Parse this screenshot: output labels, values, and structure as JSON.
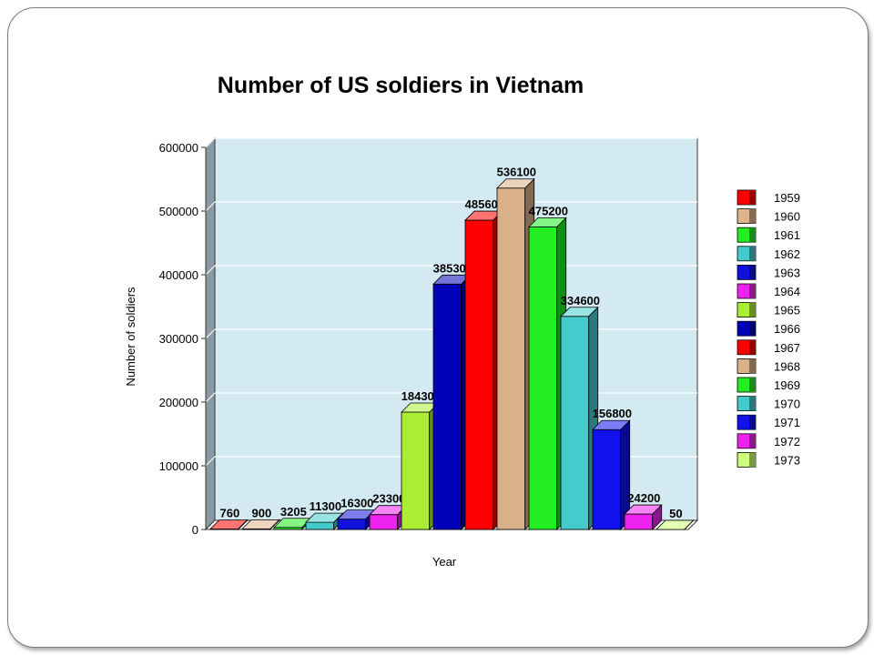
{
  "chart_data": {
    "type": "bar",
    "title": "Number of US soldiers in Vietnam",
    "xlabel": "Year",
    "ylabel": "Number of soldiers",
    "ylim": [
      0,
      600000
    ],
    "yticks": [
      "0",
      "100000",
      "200000",
      "300000",
      "400000",
      "500000",
      "600000"
    ],
    "grid": true,
    "legend_position": "right",
    "categories": [
      "1959",
      "1960",
      "1961",
      "1962",
      "1963",
      "1964",
      "1965",
      "1966",
      "1967",
      "1968",
      "1969",
      "1970",
      "1971",
      "1972",
      "1973"
    ],
    "values": [
      760,
      900,
      3205,
      11300,
      16300,
      23300,
      184300,
      385300,
      485600,
      536100,
      475200,
      334600,
      156800,
      24200,
      50
    ],
    "data_labels": [
      "760",
      "900",
      "3205",
      "11300",
      "16300",
      "23300",
      "184300",
      "385300",
      "485600",
      "536100",
      "475200",
      "334600",
      "156800",
      "24200",
      "50"
    ],
    "colors": [
      "#ff0000",
      "#e0b48a",
      "#22ee22",
      "#44cccc",
      "#1111dd",
      "#ee22ee",
      "#aaee33",
      "#0000bb",
      "#ff0000",
      "#d9b088",
      "#22ee22",
      "#44cccc",
      "#1111ee",
      "#ee22ee",
      "#ccff77"
    ]
  }
}
